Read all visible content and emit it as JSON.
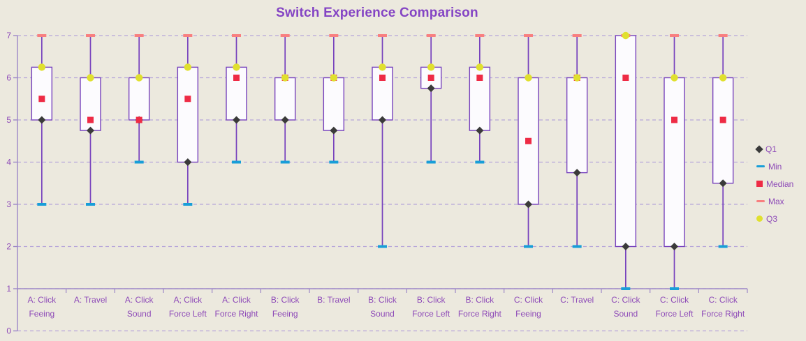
{
  "chart": {
    "title": "Switch Experience Comparison"
  },
  "legend": {
    "items": [
      {
        "label": "Q1",
        "marker": "diamond",
        "color": "#3A3A3A"
      },
      {
        "label": "Min",
        "marker": "dash",
        "color": "#189ED8"
      },
      {
        "label": "Median",
        "marker": "square",
        "color": "#EE2B45"
      },
      {
        "label": "Max",
        "marker": "dash",
        "color": "#F87F7F"
      },
      {
        "label": "Q3",
        "marker": "circle",
        "color": "#E0E02E"
      }
    ]
  },
  "colors": {
    "background": "#ECE9DE",
    "title_text": "#8444C4",
    "axis_text": "#8E4BB8",
    "gridline": "#B6A6D9",
    "axis_line": "#9D87C7",
    "box_border": "#7742BD",
    "box_fill": "#FCFBFE",
    "q1_marker": "#3A3A3A",
    "min_marker": "#189ED8",
    "median_marker": "#EE2B45",
    "max_marker": "#F87F7F",
    "q3_marker": "#E0E02E"
  },
  "chart_data": {
    "type": "box",
    "title": "Switch Experience Comparison",
    "legend_position": "right",
    "grid": "horizontal dashed",
    "y_axis": {
      "min": 0,
      "max": 7,
      "tick_interval": 1,
      "tick_labels": [
        "0",
        "1",
        "2",
        "3",
        "4",
        "5",
        "6",
        "7"
      ],
      "category_axis_crosses_at": 1
    },
    "series_order": [
      "Q1",
      "Min",
      "Median",
      "Max",
      "Q3"
    ],
    "categories": [
      {
        "label": "A: Click Feeing",
        "lines": [
          "A: Click",
          "Feeing"
        ],
        "min": 3,
        "q1": 5,
        "median": 5.5,
        "q3": 6.25,
        "max": 7
      },
      {
        "label": "A: Travel",
        "lines": [
          "A: Travel"
        ],
        "min": 3,
        "q1": 4.75,
        "median": 5,
        "q3": 6,
        "max": 7
      },
      {
        "label": "A: Click Sound",
        "lines": [
          "A: Click",
          "Sound"
        ],
        "min": 4,
        "q1": 5,
        "median": 5,
        "q3": 6,
        "max": 7
      },
      {
        "label": "A; Click Force Left",
        "lines": [
          "A; Click",
          "Force Left"
        ],
        "min": 3,
        "q1": 4,
        "median": 5.5,
        "q3": 6.25,
        "max": 7
      },
      {
        "label": "A: Click Force Right",
        "lines": [
          "A: Click",
          "Force Right"
        ],
        "min": 4,
        "q1": 5,
        "median": 6,
        "q3": 6.25,
        "max": 7
      },
      {
        "label": "B: Click Feeing",
        "lines": [
          "B: Click",
          "Feeing"
        ],
        "min": 4,
        "q1": 5,
        "median": 6,
        "q3": 6,
        "max": 7
      },
      {
        "label": "B: Travel",
        "lines": [
          "B: Travel"
        ],
        "min": 4,
        "q1": 4.75,
        "median": 6,
        "q3": 6,
        "max": 7
      },
      {
        "label": "B: Click Sound",
        "lines": [
          "B: Click",
          "Sound"
        ],
        "min": 2,
        "q1": 5,
        "median": 6,
        "q3": 6.25,
        "max": 7
      },
      {
        "label": "B: Click Force Left",
        "lines": [
          "B: Click",
          "Force Left"
        ],
        "min": 4,
        "q1": 5.75,
        "median": 6,
        "q3": 6.25,
        "max": 7
      },
      {
        "label": "B: Click Force Right",
        "lines": [
          "B: Click",
          "Force Right"
        ],
        "min": 4,
        "q1": 4.75,
        "median": 6,
        "q3": 6.25,
        "max": 7
      },
      {
        "label": "C: Click Feeing",
        "lines": [
          "C: Click",
          "Feeing"
        ],
        "min": 2,
        "q1": 3,
        "median": 4.5,
        "q3": 6,
        "max": 7
      },
      {
        "label": "C: Travel",
        "lines": [
          "C: Travel"
        ],
        "min": 2,
        "q1": 3.75,
        "median": 6,
        "q3": 6,
        "max": 7
      },
      {
        "label": "C: Click Sound",
        "lines": [
          "C: Click",
          "Sound"
        ],
        "min": 1,
        "q1": 2,
        "median": 6,
        "q3": 7,
        "max": 7
      },
      {
        "label": "C: Click Force Left",
        "lines": [
          "C: Click",
          "Force Left"
        ],
        "min": 1,
        "q1": 2,
        "median": 5,
        "q3": 6,
        "max": 7
      },
      {
        "label": "C: Click Force Right",
        "lines": [
          "C: Click",
          "Force Right"
        ],
        "min": 2,
        "q1": 3.5,
        "median": 5,
        "q3": 6,
        "max": 7
      }
    ]
  }
}
